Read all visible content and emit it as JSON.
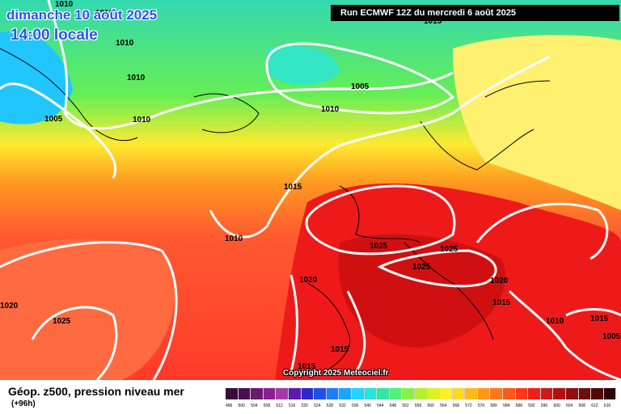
{
  "header": {
    "date": "dimanche 10 août 2025",
    "time": "14:00 locale",
    "run": "Run ECMWF 12Z du mercredi 6 août 2025"
  },
  "map": {
    "isobar_labels": [
      {
        "id": "iso-1",
        "value": "1010"
      },
      {
        "id": "iso-2",
        "value": "1010"
      },
      {
        "id": "iso-3",
        "value": "1010"
      },
      {
        "id": "iso-4",
        "value": "1010"
      },
      {
        "id": "iso-5",
        "value": "1005"
      },
      {
        "id": "iso-6",
        "value": "1010"
      },
      {
        "id": "iso-7",
        "value": "1005"
      },
      {
        "id": "iso-8",
        "value": "1010"
      },
      {
        "id": "iso-9",
        "value": "1015"
      },
      {
        "id": "iso-10",
        "value": "1015"
      },
      {
        "id": "iso-11",
        "value": "1010"
      },
      {
        "id": "iso-12",
        "value": "1025"
      },
      {
        "id": "iso-13",
        "value": "1025"
      },
      {
        "id": "iso-14",
        "value": "1025"
      },
      {
        "id": "iso-15",
        "value": "1020"
      },
      {
        "id": "iso-16",
        "value": "1020"
      },
      {
        "id": "iso-17",
        "value": "1020"
      },
      {
        "id": "iso-18",
        "value": "1015"
      },
      {
        "id": "iso-19",
        "value": "1025"
      },
      {
        "id": "iso-20",
        "value": "1015"
      },
      {
        "id": "iso-21",
        "value": "1015"
      },
      {
        "id": "iso-22",
        "value": "1010"
      },
      {
        "id": "iso-23",
        "value": "1015"
      },
      {
        "id": "iso-24",
        "value": "1005"
      }
    ],
    "copyright": "Copyright 2025 Meteociel.fr"
  },
  "footer": {
    "title": "Géop. z500, pression niveau mer",
    "lead": "(+96h)"
  },
  "legend": {
    "values": [
      "496",
      "500",
      "504",
      "508",
      "512",
      "516",
      "520",
      "524",
      "528",
      "532",
      "536",
      "540",
      "544",
      "548",
      "552",
      "556",
      "560",
      "564",
      "568",
      "572",
      "576",
      "580",
      "584",
      "588",
      "592",
      "596",
      "600",
      "604",
      "608",
      "612",
      "616"
    ],
    "colors": [
      "#3b0a3b",
      "#4b0f4f",
      "#6a1a6f",
      "#8a1f90",
      "#a33aa8",
      "#5b1ab0",
      "#2a2ac8",
      "#1f4fe6",
      "#1f7bff",
      "#1aa6ff",
      "#22d4ff",
      "#22e6d8",
      "#33e6a6",
      "#55ee77",
      "#88f04a",
      "#b5f030",
      "#ddf028",
      "#fff028",
      "#ffd820",
      "#ffb81a",
      "#ff9818",
      "#ff7818",
      "#ff5818",
      "#ff3818",
      "#f02018",
      "#d01818",
      "#b01010",
      "#901010",
      "#700c0c",
      "#500808",
      "#300404"
    ]
  }
}
